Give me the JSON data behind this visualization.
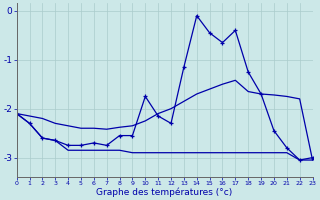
{
  "xlabel": "Graphe des températures (°c)",
  "background_color": "#cce8e8",
  "line_color": "#0000aa",
  "grid_color": "#aacccc",
  "x_hours": [
    0,
    1,
    2,
    3,
    4,
    5,
    6,
    7,
    8,
    9,
    10,
    11,
    12,
    13,
    14,
    15,
    16,
    17,
    18,
    19,
    20,
    21,
    22,
    23
  ],
  "temp_curve": [
    -2.1,
    -2.3,
    -2.6,
    -2.65,
    -2.75,
    -2.75,
    -2.7,
    -2.75,
    -2.55,
    -2.55,
    -1.75,
    -2.15,
    -2.3,
    -1.15,
    -0.1,
    -0.45,
    -0.65,
    -0.4,
    -1.25,
    -1.7,
    -2.45,
    -2.8,
    -3.05,
    -3.0
  ],
  "temp_min": [
    -2.1,
    -2.3,
    -2.6,
    -2.65,
    -2.85,
    -2.85,
    -2.85,
    -2.85,
    -2.85,
    -2.9,
    -2.9,
    -2.9,
    -2.9,
    -2.9,
    -2.9,
    -2.9,
    -2.9,
    -2.9,
    -2.9,
    -2.9,
    -2.9,
    -2.9,
    -3.05,
    -3.05
  ],
  "temp_trend": [
    -2.1,
    -2.15,
    -2.2,
    -2.3,
    -2.35,
    -2.4,
    -2.4,
    -2.42,
    -2.38,
    -2.35,
    -2.25,
    -2.1,
    -2.0,
    -1.85,
    -1.7,
    -1.6,
    -1.5,
    -1.42,
    -1.65,
    -1.7,
    -1.72,
    -1.75,
    -1.8,
    -3.05
  ],
  "ylim": [
    -3.4,
    0.15
  ],
  "yticks": [
    0,
    -1,
    -2,
    -3
  ],
  "ytick_labels": [
    "0",
    "-1",
    "-2",
    "-3"
  ],
  "xlim": [
    0,
    23
  ],
  "figsize": [
    3.2,
    2.0
  ],
  "dpi": 100
}
